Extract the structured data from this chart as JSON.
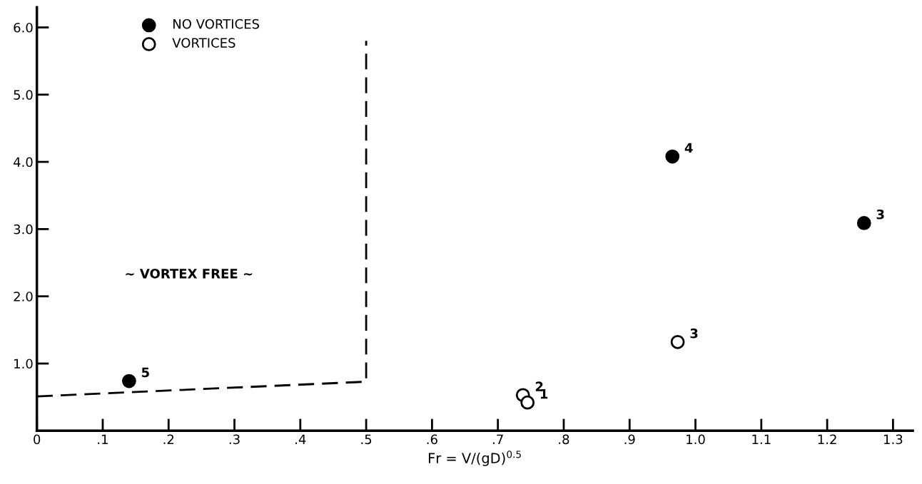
{
  "chart_data": {
    "type": "scatter",
    "xlabel": "Fr = V/(gD)$^{0.5}$",
    "series": [
      {
        "name": "NO VORTICES",
        "marker": "circle",
        "color": "#000000",
        "x": [
          0.14,
          0.965,
          1.256
        ],
        "values": [
          0.74,
          4.08,
          3.09
        ]
      },
      {
        "name": "VORTICES",
        "marker": "circle",
        "color": "#ffffff",
        "x": [
          0.973,
          0.738,
          0.745
        ],
        "values": [
          1.32,
          0.53,
          0.42
        ]
      },
      {
        "type": "line",
        "marker": "none",
        "line_style": "dashed",
        "color": "#000000",
        "x": [
          0,
          0.5,
          0.5
        ],
        "values": [
          0.51,
          0.73,
          5.8
        ]
      }
    ],
    "annotations": [
      {
        "text": "5",
        "x": 0.14,
        "y": 0.74
      },
      {
        "text": "4",
        "x": 0.965,
        "y": 4.08
      },
      {
        "text": "3",
        "x": 1.256,
        "y": 3.09
      },
      {
        "text": "3",
        "x": 0.973,
        "y": 1.32
      },
      {
        "text": "2",
        "x": 0.738,
        "y": 0.53
      },
      {
        "text": "1",
        "x": 0.745,
        "y": 0.42
      },
      "~ VORTEX FREE ~"
    ],
    "xlim": [
      0,
      1.33
    ],
    "ylim": [
      0,
      6.3
    ],
    "xticks": [
      0,
      {
        "value": 0.1,
        "label": ".1"
      },
      {
        "value": 0.2,
        "label": ".2"
      },
      {
        "value": 0.3,
        "label": ".3"
      },
      {
        "value": 0.4,
        "label": ".4"
      },
      {
        "value": 0.5,
        "label": ".5"
      },
      {
        "value": 0.6,
        "label": ".6"
      },
      {
        "value": 0.7,
        "label": ".7"
      },
      {
        "value": 0.8,
        "label": ".8"
      },
      {
        "value": 0.9,
        "label": ".9"
      },
      {
        "value": 1.0,
        "label": "1.0"
      },
      {
        "value": 1.1,
        "label": "1.1"
      },
      {
        "value": 1.2,
        "label": "1.2"
      },
      {
        "value": 1.3,
        "label": "1.3"
      }
    ],
    "yticks": [
      {
        "value": 1,
        "label": "1.0"
      },
      {
        "value": 2,
        "label": "2.0"
      },
      {
        "value": 3,
        "label": "3.0"
      },
      {
        "value": 4,
        "label": "4.0"
      },
      {
        "value": 5,
        "label": "5.0"
      },
      {
        "value": 6,
        "label": "6.0"
      }
    ],
    "grid": false,
    "legend": "top left"
  }
}
